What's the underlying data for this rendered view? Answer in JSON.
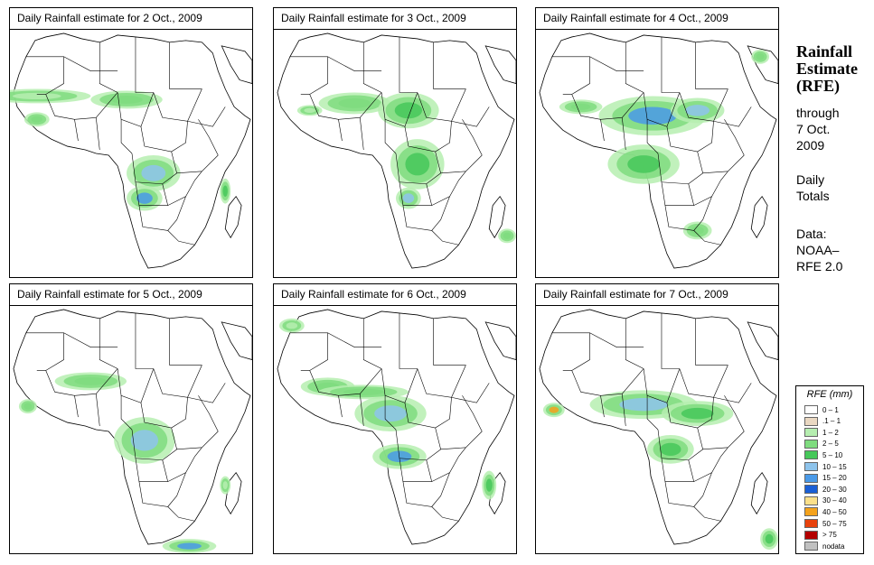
{
  "panels": [
    {
      "title": "Daily Rainfall estimate for  2 Oct., 2009"
    },
    {
      "title": "Daily Rainfall estimate for  3 Oct., 2009"
    },
    {
      "title": "Daily Rainfall estimate for  4 Oct., 2009"
    },
    {
      "title": "Daily Rainfall estimate for  5 Oct., 2009"
    },
    {
      "title": "Daily Rainfall estimate for  6 Oct., 2009"
    },
    {
      "title": "Daily Rainfall estimate for  7 Oct., 2009"
    }
  ],
  "side": {
    "heading": [
      "Rainfall",
      "Estimate",
      "(RFE)"
    ],
    "through": [
      "through",
      "7 Oct.",
      "2009"
    ],
    "daily": [
      "Daily",
      "Totals"
    ],
    "data": [
      "Data:",
      "NOAA–",
      "RFE 2.0"
    ]
  },
  "legend": {
    "title": "RFE (mm)",
    "items": [
      {
        "label": "0 – 1",
        "color": "#ffffff"
      },
      {
        "label": ".1 – 1",
        "color": "#ead8c2"
      },
      {
        "label": "1 – 2",
        "color": "#b6eeb0"
      },
      {
        "label": "2 – 5",
        "color": "#7fdc7f"
      },
      {
        "label": "5 – 10",
        "color": "#46c85a"
      },
      {
        "label": "10 – 15",
        "color": "#8ec4ec"
      },
      {
        "label": "15 – 20",
        "color": "#4a9ae8"
      },
      {
        "label": "20 – 30",
        "color": "#1a5fd6"
      },
      {
        "label": "30 – 40",
        "color": "#fbe08a"
      },
      {
        "label": "40 – 50",
        "color": "#f4a21c"
      },
      {
        "label": "50 – 75",
        "color": "#e8420c"
      },
      {
        "label": "> 75",
        "color": "#b40000"
      },
      {
        "label": "nodata",
        "color": "#c0c0c0"
      }
    ]
  }
}
